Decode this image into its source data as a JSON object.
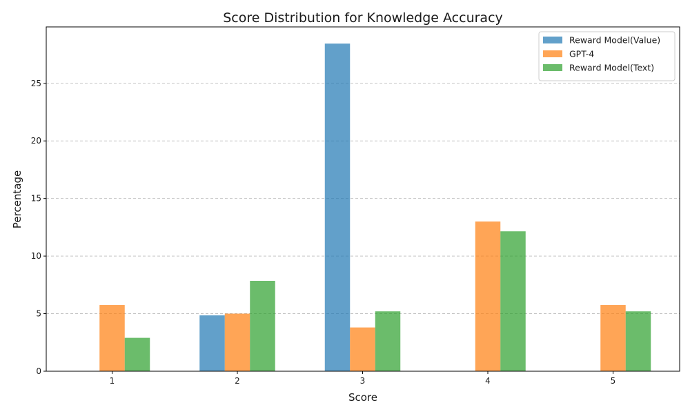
{
  "chart_data": {
    "type": "bar",
    "title": "Score Distribution for Knowledge Accuracy",
    "xlabel": "Score",
    "ylabel": "Percentage",
    "categories": [
      "1",
      "2",
      "3",
      "4",
      "5"
    ],
    "series": [
      {
        "name": "Reward Model(Value)",
        "color": "#1f77b4",
        "values": [
          0,
          4.85,
          28.45,
          0,
          0
        ]
      },
      {
        "name": "GPT-4",
        "color": "#ff7f0e",
        "values": [
          5.75,
          5.0,
          3.8,
          13.0,
          5.75
        ]
      },
      {
        "name": "Reward Model(Text)",
        "color": "#2ca02c",
        "values": [
          2.9,
          7.85,
          5.2,
          12.15,
          5.2
        ]
      }
    ],
    "ylim": [
      0,
      29.9
    ],
    "yticks": [
      0,
      5,
      10,
      15,
      20,
      25
    ],
    "grid": "y-dashed",
    "legend": "top-right",
    "bar_alpha": 0.7
  }
}
